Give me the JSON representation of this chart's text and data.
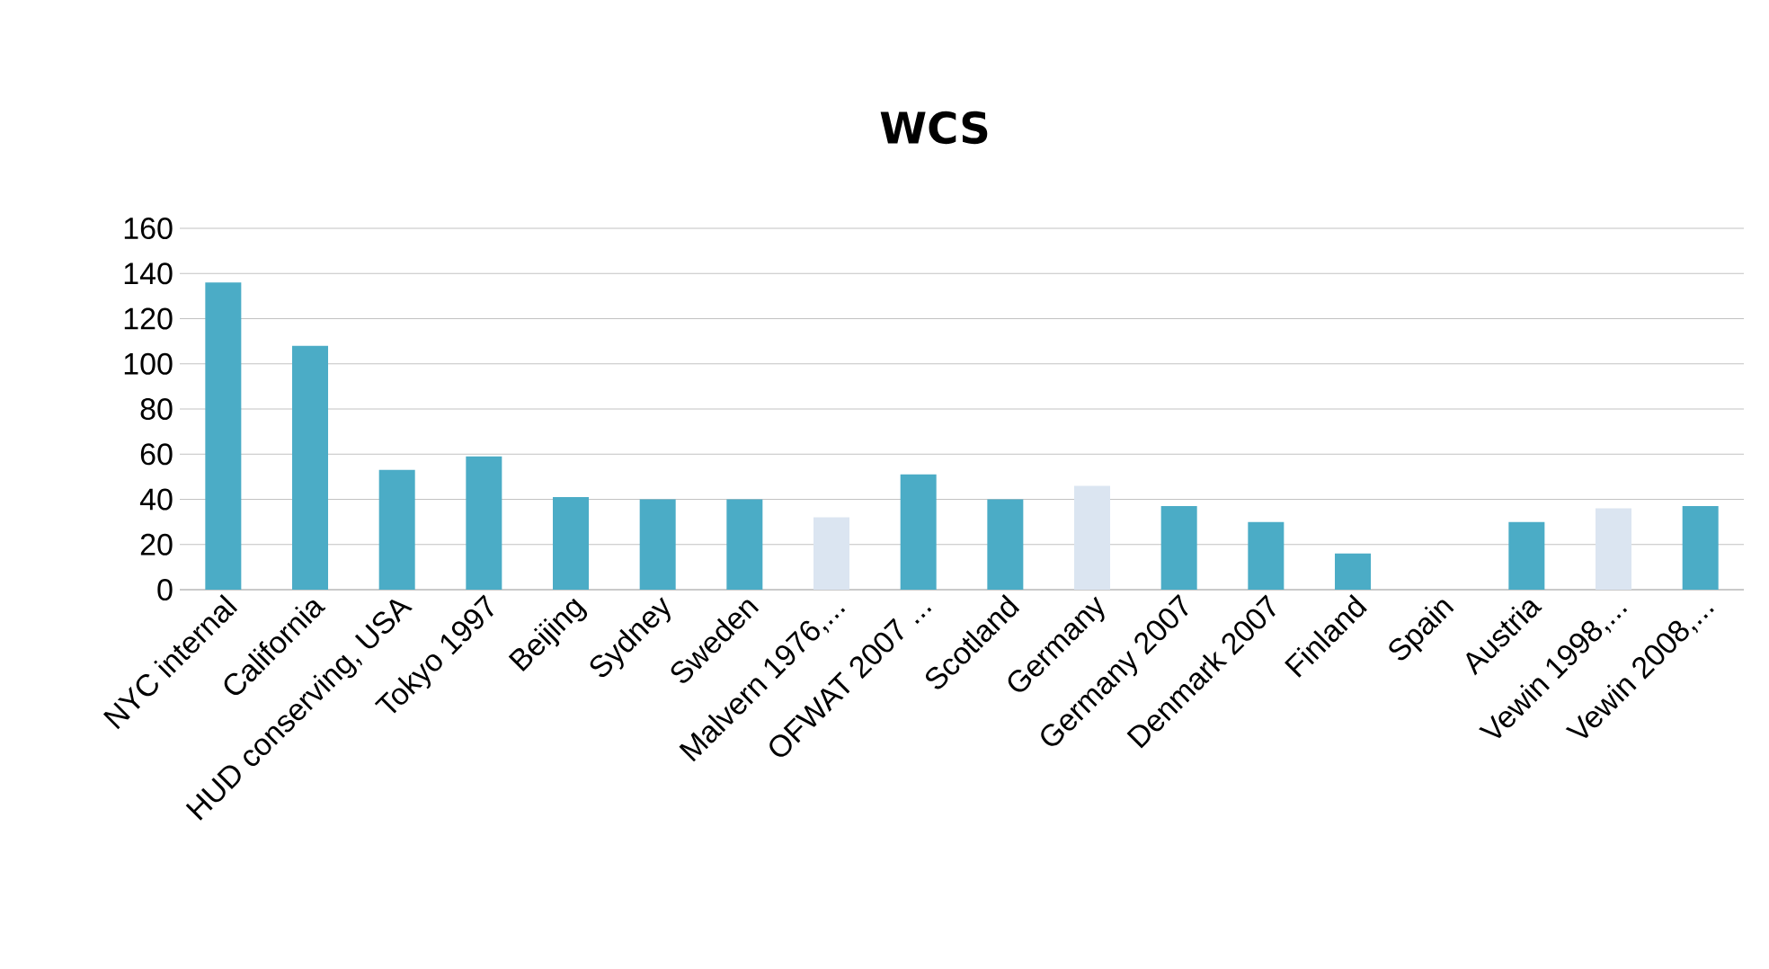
{
  "chart_data": {
    "type": "bar",
    "title": "WCS",
    "categories": [
      "NYC internal",
      "California",
      "HUD conserving, USA",
      "Tokyo 1997",
      "Beijing",
      "Sydney",
      "Sweden",
      "Malvern 1976,...",
      "OFWAT 2007 ...",
      "Scotland",
      "Germany",
      "Germany 2007",
      "Denmark 2007",
      "Finland",
      "Spain",
      "Austria",
      "Vewin 1998,...",
      "Vewin 2008,..."
    ],
    "values": [
      136,
      108,
      53,
      59,
      41,
      40,
      40,
      32,
      51,
      40,
      46,
      37,
      30,
      16,
      null,
      30,
      36,
      37
    ],
    "colors": [
      "#4bacc6",
      "#4bacc6",
      "#4bacc6",
      "#4bacc6",
      "#4bacc6",
      "#4bacc6",
      "#4bacc6",
      "#dbe5f1",
      "#4bacc6",
      "#4bacc6",
      "#dbe5f1",
      "#4bacc6",
      "#4bacc6",
      "#4bacc6",
      "#4bacc6",
      "#4bacc6",
      "#dbe5f1",
      "#4bacc6"
    ],
    "ylim": [
      0,
      160
    ],
    "yticks": [
      0,
      20,
      40,
      60,
      80,
      100,
      120,
      140,
      160
    ],
    "grid": "y"
  }
}
